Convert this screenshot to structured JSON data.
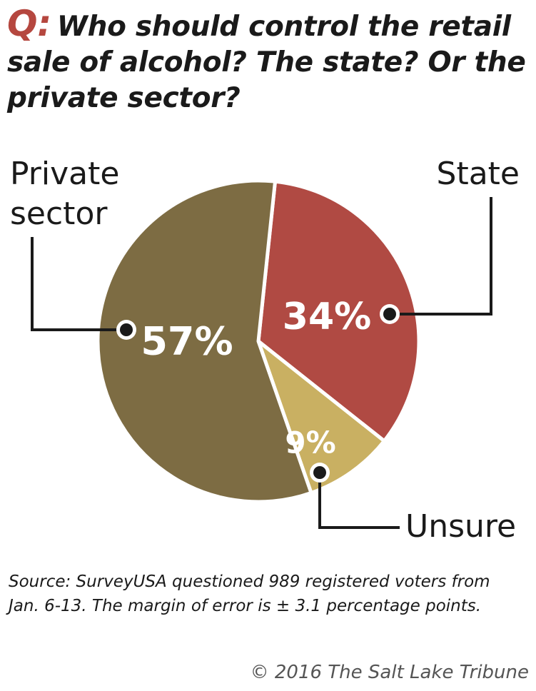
{
  "header": {
    "q_prefix": "Q:",
    "question": "Who should control the retail sale of alcohol? The state? Or the private sector?"
  },
  "chart_data": {
    "type": "pie",
    "title": "Who should control the retail sale of alcohol? The state? Or the private sector?",
    "slices": [
      {
        "label_lines": [
          "State"
        ],
        "value": 34,
        "display": "34%",
        "color": "#b04a43"
      },
      {
        "label_lines": [
          "Unsure"
        ],
        "value": 9,
        "display": "9%",
        "color": "#c9b062"
      },
      {
        "label_lines": [
          "Private",
          "sector"
        ],
        "value": 57,
        "display": "57%",
        "color": "#7d6c43"
      }
    ]
  },
  "footer": {
    "source": "Source: SurveyUSA questioned 989 registered voters  from Jan. 6-13. The margin of error is ± 3.1 percentage points.",
    "credit": "© 2016 The Salt Lake Tribune"
  }
}
